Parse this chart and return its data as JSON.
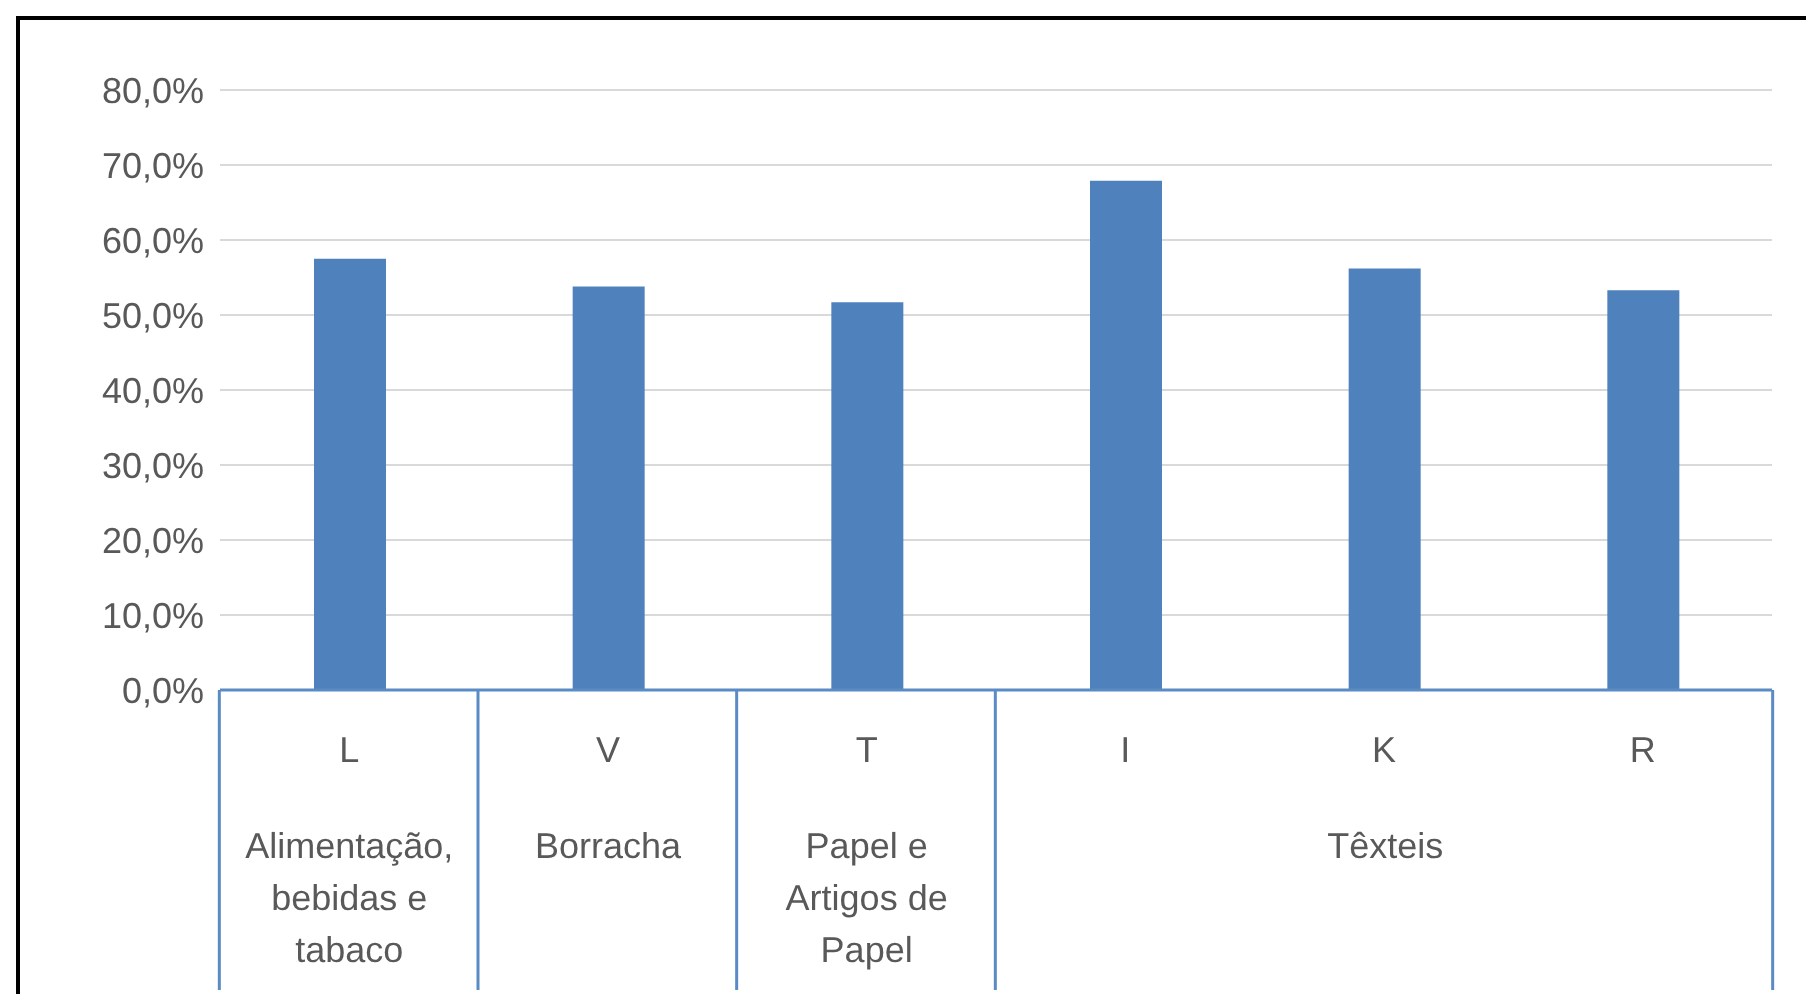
{
  "chart_data": {
    "type": "bar",
    "categories": [
      "L",
      "V",
      "T",
      "I",
      "K",
      "R"
    ],
    "values": [
      57.5,
      53.8,
      51.7,
      67.9,
      56.2,
      53.3
    ],
    "color": "#4f81bd",
    "ylim": [
      0,
      80
    ],
    "yticks": [
      {
        "value": 0,
        "label": "0,0%"
      },
      {
        "value": 10,
        "label": "10,0%"
      },
      {
        "value": 20,
        "label": "20,0%"
      },
      {
        "value": 30,
        "label": "30,0%"
      },
      {
        "value": 40,
        "label": "40,0%"
      },
      {
        "value": 50,
        "label": "50,0%"
      },
      {
        "value": 60,
        "label": "60,0%"
      },
      {
        "value": 70,
        "label": "70,0%"
      },
      {
        "value": 80,
        "label": "80,0%"
      }
    ],
    "grid": "y",
    "legend": false,
    "annotations": [
      "Alimentação, bebidas e tabaco",
      "Borracha",
      "Papel e Artigos de Papel",
      "Têxteis"
    ]
  }
}
